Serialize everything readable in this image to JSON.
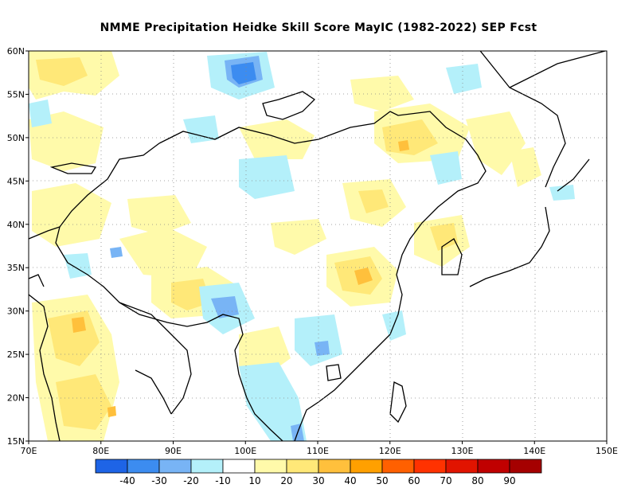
{
  "title": "NMME  Precipitation Heidke Skill Score MayIC (1982-2022) SEP Fcst",
  "map": {
    "lon_range": [
      70,
      150
    ],
    "lat_range": [
      15,
      60
    ],
    "lon_ticks": [
      "70E",
      "80E",
      "90E",
      "100E",
      "110E",
      "120E",
      "130E",
      "140E",
      "150E"
    ],
    "lat_ticks": [
      "15N",
      "20N",
      "25N",
      "30N",
      "35N",
      "40N",
      "45N",
      "50N",
      "55N",
      "60N"
    ],
    "gridlines": "dotted"
  },
  "colorbar": {
    "labels": [
      "-40",
      "-30",
      "-20",
      "-10",
      "10",
      "20",
      "30",
      "40",
      "50",
      "60",
      "70",
      "80",
      "90"
    ],
    "colors": [
      "#1e64e6",
      "#3c8cf0",
      "#78b4f5",
      "#b4f0fa",
      "#ffffff",
      "#fffaaa",
      "#ffe878",
      "#ffc03c",
      "#ffa000",
      "#ff6000",
      "#ff3200",
      "#e11400",
      "#c00000",
      "#a50000"
    ]
  },
  "palette": {
    "neg_strong": "#3c8cf0",
    "neg_mid": "#78b4f5",
    "neg_light": "#b4f0fa",
    "pos_light": "#fffaaa",
    "pos_mid": "#ffe878",
    "pos_strong": "#ffc03c",
    "pos_orange": "#ffa000",
    "line": "#000000",
    "grid": "#888888"
  }
}
